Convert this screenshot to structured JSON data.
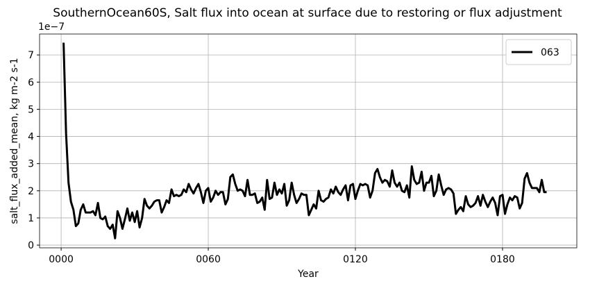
{
  "chart_data": {
    "type": "line",
    "title": "SouthernOcean60S, Salt flux into ocean at surface due to restoring or flux adjustment",
    "x_label": "Year",
    "y_label": "salt_flux_added_mean, kg m-2 s-1",
    "y_offset_label": "1e−7",
    "xlim": [
      -8.8,
      210.3
    ],
    "ylim": [
      -0.1,
      7.77
    ],
    "xticks": [
      {
        "value": 0,
        "label": "0000"
      },
      {
        "value": 60,
        "label": "0060"
      },
      {
        "value": 120,
        "label": "0120"
      },
      {
        "value": 180,
        "label": "0180"
      }
    ],
    "yticks": [
      0,
      1,
      2,
      3,
      4,
      5,
      6,
      7
    ],
    "grid": true,
    "legend": "upper right",
    "x": [
      1,
      2,
      3,
      4,
      5,
      6,
      7,
      8,
      9,
      10,
      11,
      12,
      13,
      14,
      15,
      16,
      17,
      18,
      19,
      20,
      21,
      22,
      23,
      24,
      25,
      26,
      27,
      28,
      29,
      30,
      31,
      32,
      33,
      34,
      35,
      36,
      37,
      38,
      39,
      40,
      41,
      42,
      43,
      44,
      45,
      46,
      47,
      48,
      49,
      50,
      51,
      52,
      53,
      54,
      55,
      56,
      57,
      58,
      59,
      60,
      61,
      62,
      63,
      64,
      65,
      66,
      67,
      68,
      69,
      70,
      71,
      72,
      73,
      74,
      75,
      76,
      77,
      78,
      79,
      80,
      81,
      82,
      83,
      84,
      85,
      86,
      87,
      88,
      89,
      90,
      91,
      92,
      93,
      94,
      95,
      96,
      97,
      98,
      99,
      100,
      101,
      102,
      103,
      104,
      105,
      106,
      107,
      108,
      109,
      110,
      111,
      112,
      113,
      114,
      115,
      116,
      117,
      118,
      119,
      120,
      121,
      122,
      123,
      124,
      125,
      126,
      127,
      128,
      129,
      130,
      131,
      132,
      133,
      134,
      135,
      136,
      137,
      138,
      139,
      140,
      141,
      142,
      143,
      144,
      145,
      146,
      147,
      148,
      149,
      150,
      151,
      152,
      153,
      154,
      155,
      156,
      157,
      158,
      159,
      160,
      161,
      162,
      163,
      164,
      165,
      166,
      167,
      168,
      169,
      170,
      171,
      172,
      173,
      174,
      175,
      176,
      177,
      178,
      179,
      180,
      181,
      182,
      183,
      184,
      185,
      186,
      187,
      188,
      189,
      190,
      191,
      192,
      193,
      194,
      195,
      196,
      197,
      198
    ],
    "series": [
      {
        "name": "063",
        "color": "#000000",
        "values": [
          7.45,
          4.1,
          2.3,
          1.6,
          1.3,
          0.7,
          0.8,
          1.3,
          1.5,
          1.2,
          1.2,
          1.2,
          1.25,
          1.1,
          1.55,
          1.0,
          0.95,
          1.05,
          0.7,
          0.6,
          0.75,
          0.25,
          1.25,
          1.0,
          0.6,
          0.95,
          1.35,
          0.9,
          1.2,
          0.85,
          1.25,
          0.65,
          1.0,
          1.7,
          1.45,
          1.35,
          1.45,
          1.6,
          1.65,
          1.65,
          1.2,
          1.4,
          1.65,
          1.55,
          2.05,
          1.8,
          1.85,
          1.8,
          1.85,
          2.05,
          1.95,
          2.25,
          2.05,
          1.9,
          2.1,
          2.25,
          1.95,
          1.55,
          2.0,
          2.1,
          1.6,
          1.75,
          2.0,
          1.85,
          1.95,
          1.95,
          1.5,
          1.7,
          2.5,
          2.6,
          2.25,
          2.0,
          2.05,
          2.0,
          1.8,
          2.4,
          1.85,
          1.85,
          1.9,
          1.55,
          1.6,
          1.75,
          1.3,
          2.4,
          1.7,
          1.75,
          2.3,
          1.85,
          2.05,
          1.9,
          2.25,
          1.45,
          1.65,
          2.3,
          1.85,
          1.55,
          1.7,
          1.9,
          1.85,
          1.85,
          1.1,
          1.3,
          1.5,
          1.35,
          2.0,
          1.65,
          1.6,
          1.7,
          1.75,
          2.05,
          1.9,
          2.15,
          1.95,
          1.85,
          2.05,
          2.2,
          1.65,
          2.2,
          2.25,
          1.7,
          2.0,
          2.25,
          2.2,
          2.25,
          2.2,
          1.75,
          2.0,
          2.65,
          2.8,
          2.5,
          2.3,
          2.4,
          2.35,
          2.15,
          2.75,
          2.3,
          2.15,
          2.3,
          2.0,
          1.95,
          2.2,
          1.75,
          2.9,
          2.4,
          2.25,
          2.3,
          2.7,
          2.0,
          2.3,
          2.3,
          2.55,
          1.8,
          2.0,
          2.6,
          2.2,
          1.85,
          2.05,
          2.1,
          2.05,
          1.9,
          1.15,
          1.3,
          1.4,
          1.25,
          1.8,
          1.5,
          1.4,
          1.45,
          1.55,
          1.8,
          1.45,
          1.85,
          1.6,
          1.4,
          1.6,
          1.75,
          1.55,
          1.1,
          1.8,
          1.85,
          1.15,
          1.5,
          1.75,
          1.65,
          1.8,
          1.75,
          1.35,
          1.55,
          2.45,
          2.65,
          2.3,
          2.1,
          2.1,
          2.1,
          1.95,
          2.4,
          1.95,
          1.95
        ]
      }
    ]
  }
}
